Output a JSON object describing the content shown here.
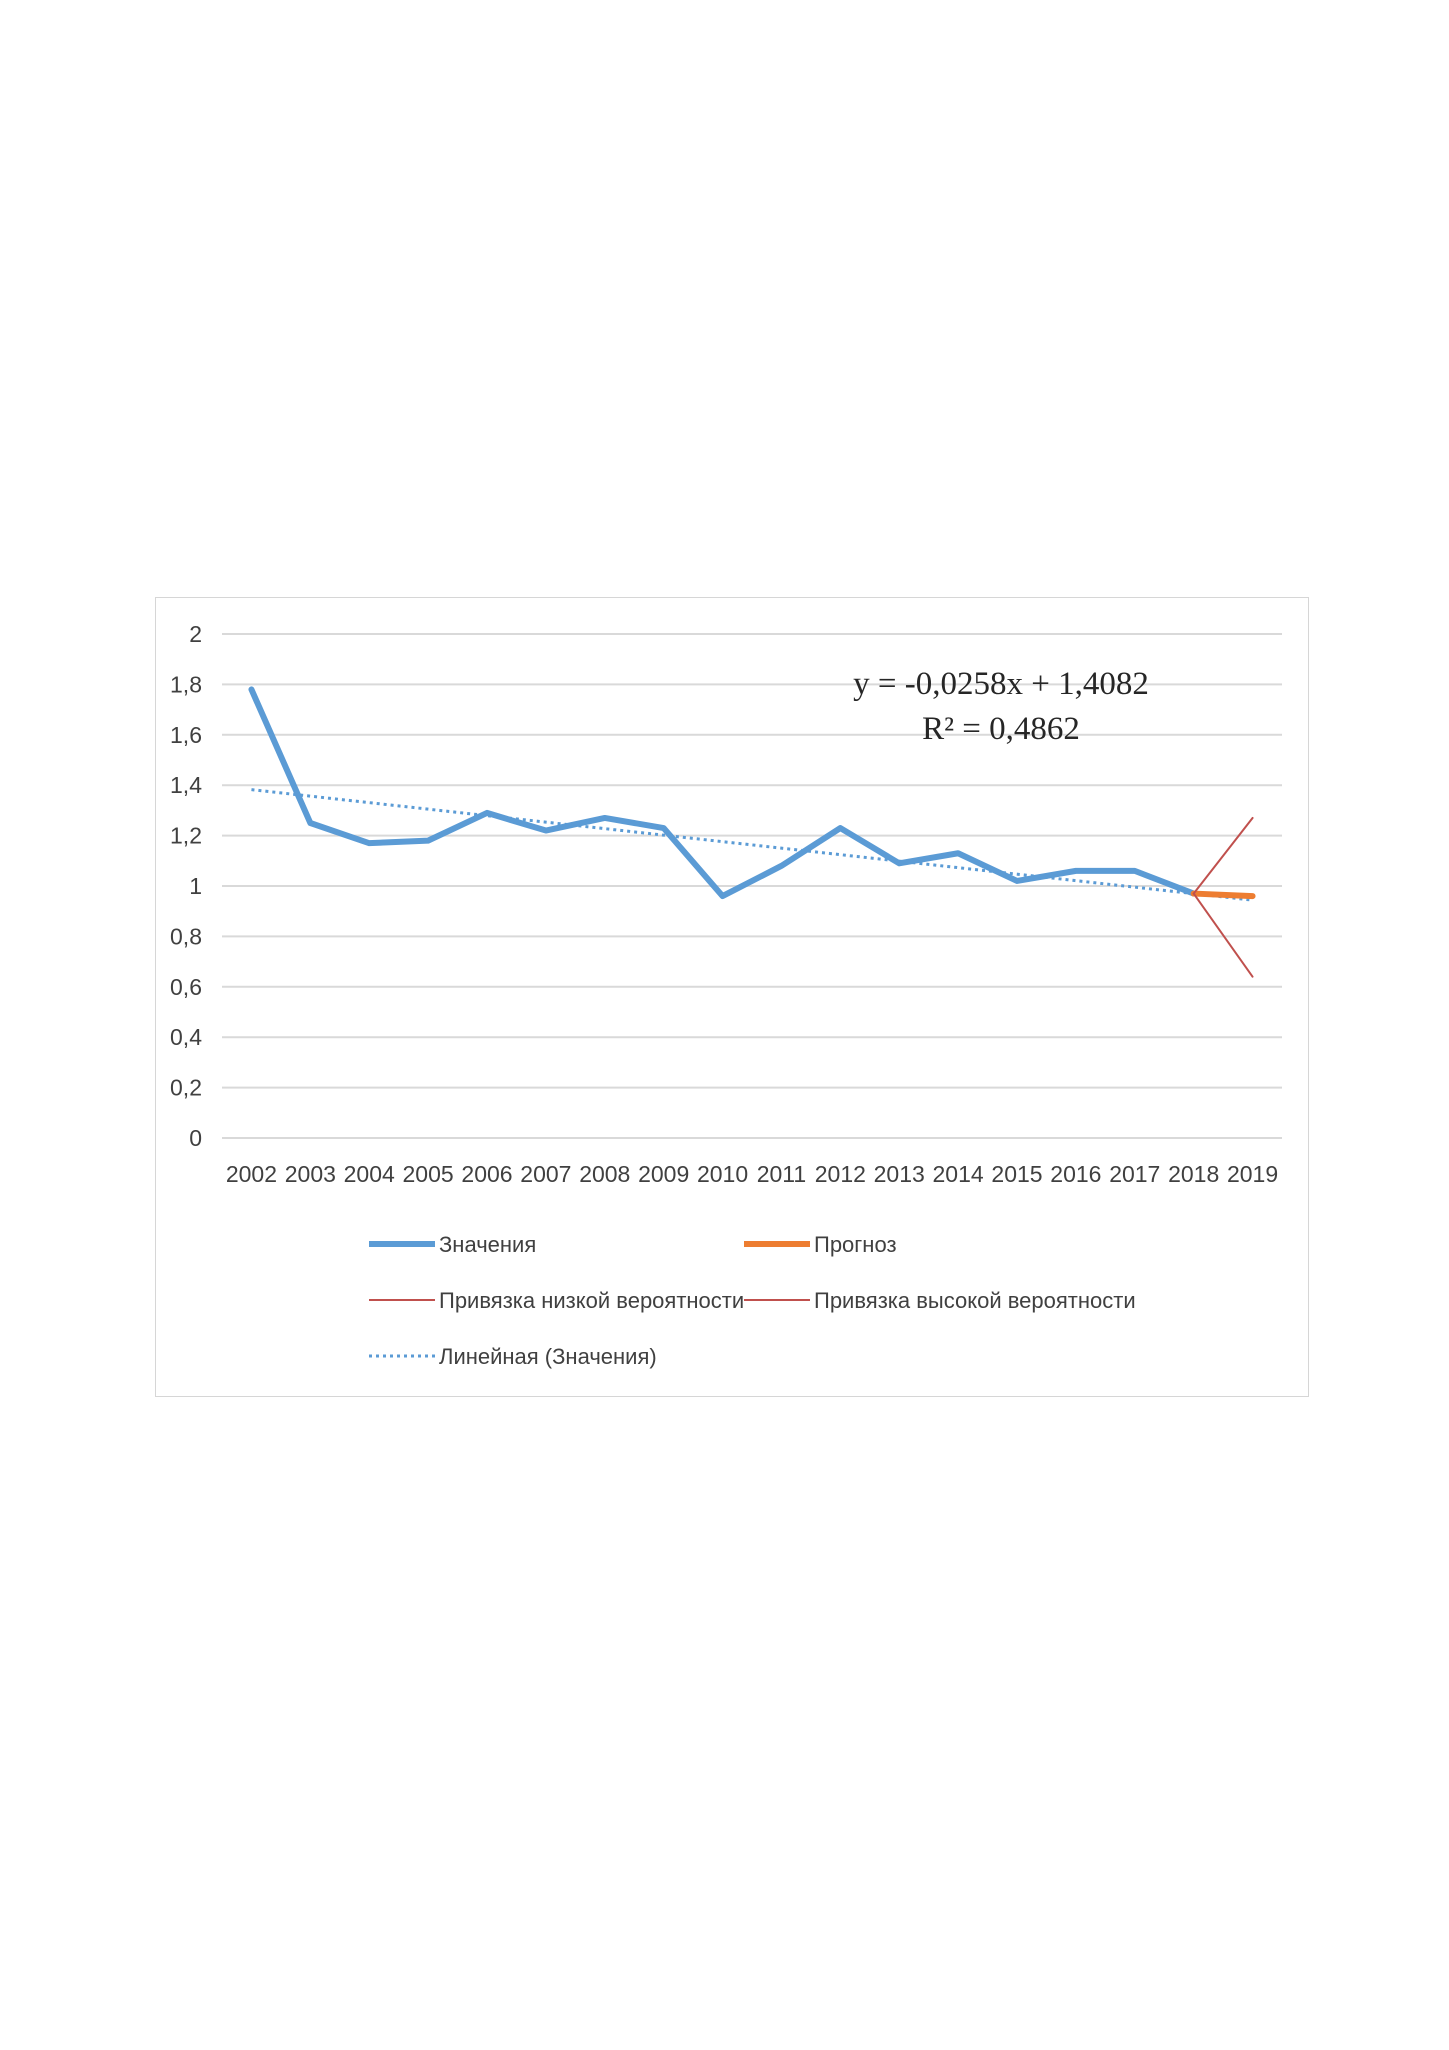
{
  "chart_data": {
    "type": "line",
    "title": "",
    "xlabel": "",
    "ylabel": "",
    "categories": [
      "2002",
      "2003",
      "2004",
      "2005",
      "2006",
      "2007",
      "2008",
      "2009",
      "2010",
      "2011",
      "2012",
      "2013",
      "2014",
      "2015",
      "2016",
      "2017",
      "2018",
      "2019"
    ],
    "y_ticks": [
      "0",
      "0,2",
      "0,4",
      "0,6",
      "0,8",
      "1",
      "1,2",
      "1,4",
      "1,6",
      "1,8",
      "2"
    ],
    "ylim": [
      0,
      2
    ],
    "grid": true,
    "legend_position": "bottom",
    "series": [
      {
        "name": "Значения",
        "color": "#5b9bd5",
        "values": [
          1.78,
          1.25,
          1.17,
          1.18,
          1.29,
          1.22,
          1.27,
          1.23,
          0.96,
          1.08,
          1.23,
          1.09,
          1.13,
          1.02,
          1.06,
          1.06,
          0.97,
          null
        ]
      },
      {
        "name": "Прогноз",
        "color": "#ed7d31",
        "values": [
          null,
          null,
          null,
          null,
          null,
          null,
          null,
          null,
          null,
          null,
          null,
          null,
          null,
          null,
          null,
          null,
          0.97,
          0.96
        ]
      },
      {
        "name": "Привязка низкой вероятности",
        "color": "#c0504d",
        "values": [
          null,
          null,
          null,
          null,
          null,
          null,
          null,
          null,
          null,
          null,
          null,
          null,
          null,
          null,
          null,
          null,
          0.97,
          0.64
        ]
      },
      {
        "name": "Привязка высокой вероятности",
        "color": "#c0504d",
        "values": [
          null,
          null,
          null,
          null,
          null,
          null,
          null,
          null,
          null,
          null,
          null,
          null,
          null,
          null,
          null,
          null,
          0.97,
          1.27
        ]
      },
      {
        "name": "Линейная (Значения)",
        "color": "#5b9bd5",
        "trendline": {
          "slope": -0.0258,
          "intercept": 1.4082
        }
      }
    ],
    "annotation": {
      "equation": "y = -0,0258x  + 1,4082",
      "r2": "R² = 0,4862"
    }
  }
}
